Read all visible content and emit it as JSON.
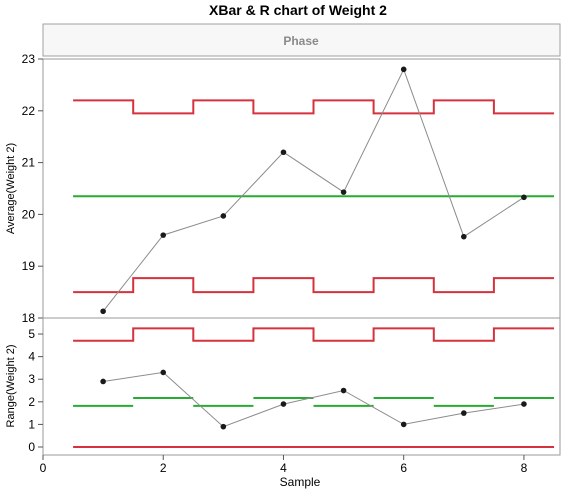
{
  "chart_data": {
    "title": "XBar & R chart of Weight 2",
    "phase_label": "Phase",
    "xlabel": "Sample",
    "x_ticks": [
      0,
      2,
      4,
      6,
      8
    ],
    "xlim": [
      0,
      8.6
    ],
    "colors": {
      "limits": "#d5323d",
      "center": "#27ab31",
      "series": "#8c8c8c",
      "points": "#1a1a1a"
    },
    "panels": [
      {
        "name": "average",
        "type": "line",
        "ylabel": "Average(Weight 2)",
        "ylim": [
          18,
          23
        ],
        "y_ticks": [
          18,
          19,
          20,
          21,
          22,
          23
        ],
        "x": [
          1,
          2,
          3,
          4,
          5,
          6,
          7,
          8
        ],
        "values": [
          18.13,
          19.6,
          19.97,
          21.2,
          20.43,
          22.8,
          19.57,
          20.33
        ],
        "ucl": [
          22.2,
          21.95,
          22.2,
          21.95,
          22.2,
          21.95,
          22.2,
          21.95
        ],
        "lcl": [
          18.5,
          18.77,
          18.5,
          18.77,
          18.5,
          18.77,
          18.5,
          18.77
        ],
        "center": [
          20.35,
          20.35,
          20.35,
          20.35,
          20.35,
          20.35,
          20.35,
          20.35
        ]
      },
      {
        "name": "range",
        "type": "line",
        "ylabel": "Range(Weight 2)",
        "ylim": [
          0,
          5.4
        ],
        "y_ticks": [
          0,
          1,
          2,
          3,
          4,
          5
        ],
        "x": [
          1,
          2,
          3,
          4,
          5,
          6,
          7,
          8
        ],
        "values": [
          2.9,
          3.3,
          0.9,
          1.9,
          2.5,
          1.0,
          1.5,
          1.9
        ],
        "ucl": [
          4.7,
          5.25,
          4.7,
          5.25,
          4.7,
          5.25,
          4.7,
          5.25
        ],
        "lcl": [
          0,
          0,
          0,
          0,
          0,
          0,
          0,
          0
        ],
        "center": [
          1.82,
          2.17,
          1.82,
          2.17,
          1.82,
          2.17,
          1.82,
          2.17
        ]
      }
    ]
  }
}
